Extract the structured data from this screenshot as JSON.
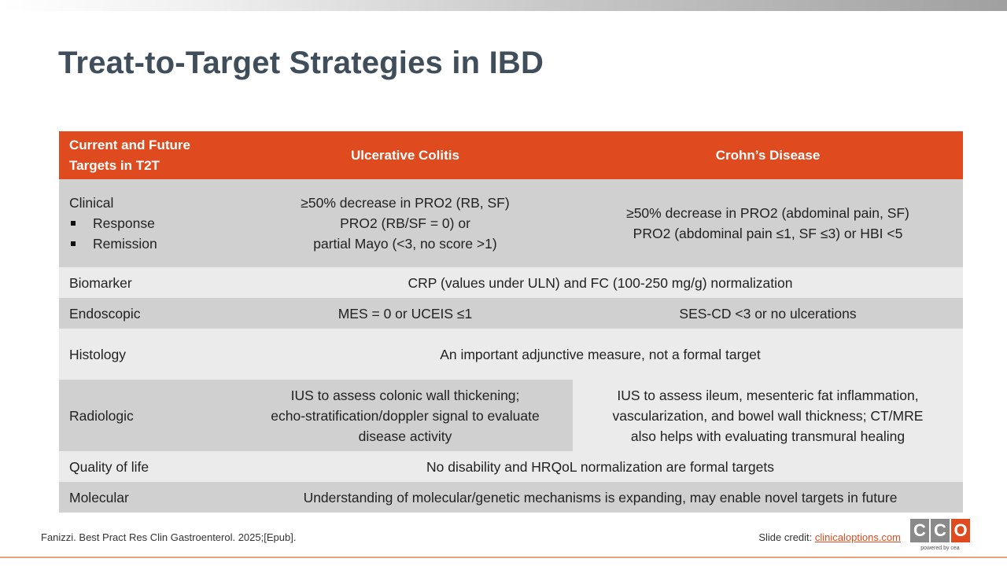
{
  "title": "Treat-to-Target Strategies in IBD",
  "table": {
    "headers": [
      "Current and Future Targets in T2T",
      "Ulcerative Colitis",
      "Crohn’s Disease"
    ],
    "clinical": {
      "label": "Clinical",
      "sub": [
        "Response",
        "Remission"
      ],
      "uc": [
        "≥50% decrease in PRO2 (RB, SF)",
        "PRO2 (RB/SF = 0) or",
        "partial Mayo (<3, no score >1)"
      ],
      "cd": [
        "≥50% decrease in PRO2 (abdominal pain, SF)",
        "PRO2 (abdominal pain ≤1, SF ≤3) or HBI <5"
      ]
    },
    "biomarker": {
      "label": "Biomarker",
      "value": "CRP (values under ULN) and FC (100-250 mg/g) normalization"
    },
    "endoscopic": {
      "label": "Endoscopic",
      "uc": "MES = 0 or UCEIS ≤1",
      "cd": "SES-CD <3 or no ulcerations"
    },
    "histology": {
      "label": "Histology",
      "value": "An important adjunctive measure, not a formal target"
    },
    "radiologic": {
      "label": "Radiologic",
      "uc": [
        "IUS to assess colonic wall thickening;",
        "echo-stratification/doppler signal to evaluate",
        "disease activity"
      ],
      "cd": [
        "IUS to assess ileum, mesenteric fat inflammation,",
        "vascularization, and bowel wall thickness; CT/MRE",
        "also helps with evaluating transmural healing"
      ]
    },
    "qol": {
      "label": "Quality of life",
      "value": "No disability and HRQoL normalization are formal targets"
    },
    "molecular": {
      "label": "Molecular",
      "value": "Understanding of molecular/genetic mechanisms is expanding, may enable novel targets in future"
    }
  },
  "footer": {
    "reference": "Fanizzi. Best Pract Res Clin Gastroenterol. 2025;[Epub].",
    "credit_prefix": "Slide credit: ",
    "credit_link": "clinicaloptions.com"
  },
  "logo": {
    "letters": [
      "C",
      "C",
      "O"
    ],
    "colors": [
      "#8a8a8a",
      "#8a8a8a",
      "#df4a1f"
    ],
    "tagline": "powered by cea"
  }
}
